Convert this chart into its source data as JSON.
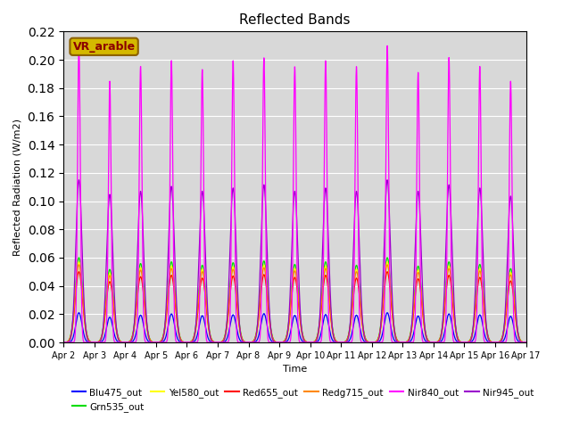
{
  "title": "Reflected Bands",
  "xlabel": "Time",
  "ylabel": "Reflected Radiation (W/m2)",
  "annotation_text": "VR_arable",
  "annotation_fg": "#8b0000",
  "annotation_bg": "#d4b800",
  "annotation_border": "#8b6000",
  "ylim": [
    0,
    0.22
  ],
  "background_color": "#d8d8d8",
  "series": [
    {
      "name": "Blu475_out",
      "color": "#0000ff",
      "peak": 0.021,
      "sigma_narrow": 0.1,
      "sigma_wide": 0.1
    },
    {
      "name": "Grn535_out",
      "color": "#00dd00",
      "peak": 0.06,
      "sigma_narrow": 0.12,
      "sigma_wide": 0.12
    },
    {
      "name": "Yel580_out",
      "color": "#ffff00",
      "peak": 0.057,
      "sigma_narrow": 0.11,
      "sigma_wide": 0.11
    },
    {
      "name": "Red655_out",
      "color": "#ff0000",
      "peak": 0.05,
      "sigma_narrow": 0.12,
      "sigma_wide": 0.12
    },
    {
      "name": "Redg715_out",
      "color": "#ff8800",
      "peak": 0.055,
      "sigma_narrow": 0.12,
      "sigma_wide": 0.12
    },
    {
      "name": "Nir840_out",
      "color": "#ff00ff",
      "peak": 0.21,
      "sigma_narrow": 0.045,
      "sigma_wide": 0.045
    },
    {
      "name": "Nir945_out",
      "color": "#9900cc",
      "peak": 0.115,
      "sigma_narrow": 0.1,
      "sigma_wide": 0.1
    }
  ],
  "n_days": 15,
  "start_day": 1,
  "x_tick_labels": [
    "Apr 2",
    "Apr 3",
    "Apr 4",
    "Apr 5",
    "Apr 6",
    "Apr 7",
    "Apr 8",
    "Apr 9",
    "Apr 10",
    "Apr 11",
    "Apr 12",
    "Apr 13",
    "Apr 14",
    "Apr 15",
    "Apr 16",
    "Apr 17"
  ],
  "x_tick_positions": [
    1,
    2,
    3,
    4,
    5,
    6,
    7,
    8,
    9,
    10,
    11,
    12,
    13,
    14,
    15,
    16
  ],
  "yticks": [
    0.0,
    0.02,
    0.04,
    0.06,
    0.08,
    0.1,
    0.12,
    0.14,
    0.16,
    0.18,
    0.2,
    0.22
  ],
  "day_peak_variations": [
    [
      1.0,
      0.85,
      0.92,
      0.96,
      0.9,
      0.93,
      0.97,
      0.91,
      0.94,
      0.92,
      1.0,
      0.89,
      0.96,
      0.93,
      0.88
    ],
    [
      1.0,
      0.86,
      0.93,
      0.95,
      0.91,
      0.94,
      0.96,
      0.92,
      0.95,
      0.91,
      1.0,
      0.9,
      0.95,
      0.92,
      0.87
    ],
    [
      1.0,
      0.86,
      0.93,
      0.95,
      0.91,
      0.94,
      0.96,
      0.92,
      0.95,
      0.91,
      1.0,
      0.9,
      0.95,
      0.92,
      0.87
    ],
    [
      1.0,
      0.86,
      0.93,
      0.95,
      0.91,
      0.94,
      0.96,
      0.92,
      0.95,
      0.91,
      1.0,
      0.9,
      0.95,
      0.92,
      0.87
    ],
    [
      1.0,
      0.86,
      0.93,
      0.95,
      0.91,
      0.94,
      0.96,
      0.92,
      0.95,
      0.91,
      1.0,
      0.9,
      0.95,
      0.92,
      0.87
    ],
    [
      1.0,
      0.88,
      0.93,
      0.95,
      0.92,
      0.95,
      0.96,
      0.93,
      0.95,
      0.93,
      1.0,
      0.91,
      0.96,
      0.93,
      0.88
    ],
    [
      1.0,
      0.91,
      0.93,
      0.96,
      0.93,
      0.95,
      0.97,
      0.93,
      0.95,
      0.93,
      1.0,
      0.93,
      0.97,
      0.95,
      0.9
    ]
  ]
}
